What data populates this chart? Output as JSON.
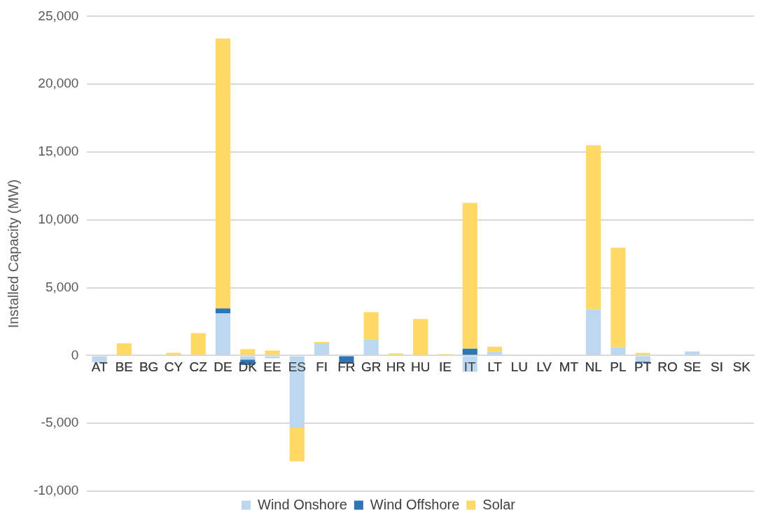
{
  "chart_data": {
    "type": "bar",
    "stacked": true,
    "ylabel": "Installed Capacity (MW)",
    "categories": [
      "AT",
      "BE",
      "BG",
      "CY",
      "CZ",
      "DE",
      "DK",
      "EE",
      "ES",
      "FI",
      "FR",
      "GR",
      "HR",
      "HU",
      "IE",
      "IT",
      "LT",
      "LU",
      "LV",
      "MT",
      "NL",
      "PL",
      "PT",
      "RO",
      "SE",
      "SI",
      "SK"
    ],
    "series": [
      {
        "name": "Wind Onshore",
        "color": "#bdd7ee",
        "values": [
          -500,
          0,
          0,
          0,
          -50,
          3100,
          -300,
          -200,
          -5300,
          900,
          0,
          1200,
          null,
          0,
          0,
          -1200,
          300,
          0,
          0,
          0,
          3400,
          600,
          -450,
          0,
          300,
          0,
          0
        ]
      },
      {
        "name": "Wind Offshore",
        "color": "#2e75b6",
        "values": [
          0,
          0,
          0,
          0,
          0,
          370,
          -400,
          0,
          0,
          0,
          -600,
          0,
          0,
          0,
          0,
          500,
          0,
          0,
          0,
          0,
          0,
          0,
          -80,
          0,
          null,
          0,
          0
        ]
      },
      {
        "name": "Solar",
        "color": "#ffd966",
        "values": [
          0,
          900,
          0,
          200,
          1650,
          19900,
          470,
          370,
          -2500,
          100,
          0,
          2000,
          150,
          2700,
          100,
          10750,
          350,
          0,
          0,
          0,
          12100,
          7350,
          200,
          0,
          0,
          0,
          0
        ]
      }
    ],
    "ylim": [
      -10000,
      25000
    ],
    "yticks": [
      {
        "value": -10000,
        "label": "-10,000"
      },
      {
        "value": -5000,
        "label": "-5,000"
      },
      0,
      {
        "value": 5000,
        "label": "5,000"
      },
      {
        "value": 10000,
        "label": "10,000"
      },
      {
        "value": 15000,
        "label": "15,000"
      },
      {
        "value": 20000,
        "label": "20,000"
      },
      {
        "value": 25000,
        "label": "25,000"
      }
    ],
    "grid": "y",
    "legend": "bottom"
  }
}
